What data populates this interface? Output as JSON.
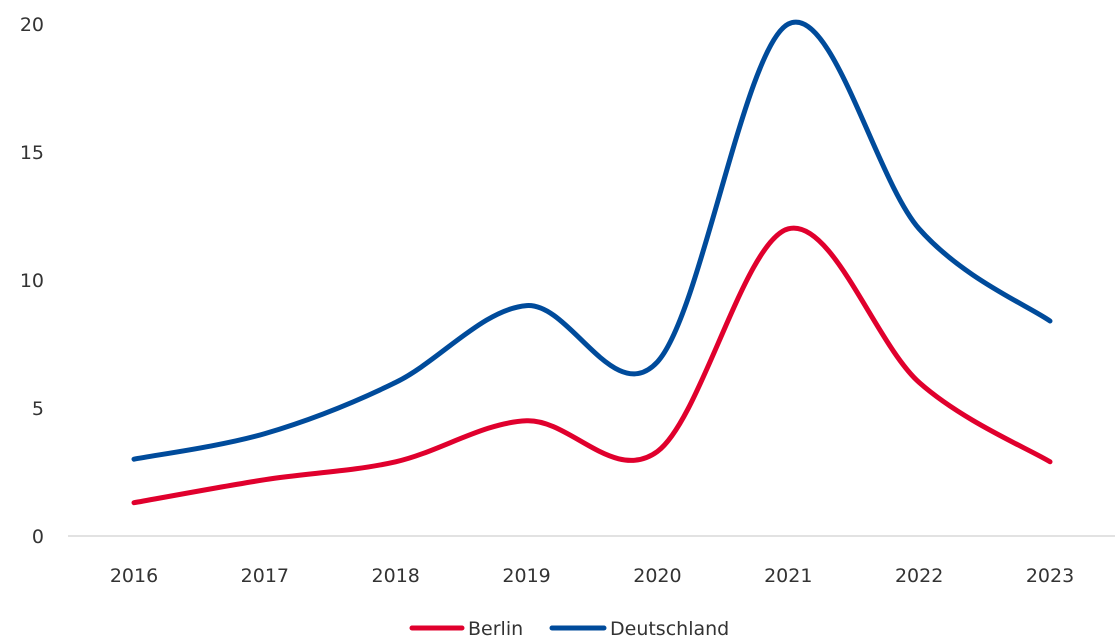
{
  "chart_data": {
    "type": "line",
    "categories": [
      "2016",
      "2017",
      "2018",
      "2019",
      "2020",
      "2021",
      "2022",
      "2023"
    ],
    "series": [
      {
        "name": "Berlin",
        "color": "#e0002d",
        "values": [
          1.3,
          2.2,
          2.9,
          4.5,
          3.3,
          12.0,
          6.0,
          2.9
        ]
      },
      {
        "name": "Deutschland",
        "color": "#004b9b",
        "values": [
          3.0,
          4.0,
          6.0,
          9.0,
          6.8,
          20.0,
          12.0,
          8.4
        ]
      }
    ],
    "yticks": [
      "0",
      "5",
      "10",
      "15",
      "20"
    ],
    "ylim": [
      0,
      20
    ],
    "grid": false,
    "legend": "bottom-center",
    "title": "",
    "xlabel": "",
    "ylabel": ""
  }
}
